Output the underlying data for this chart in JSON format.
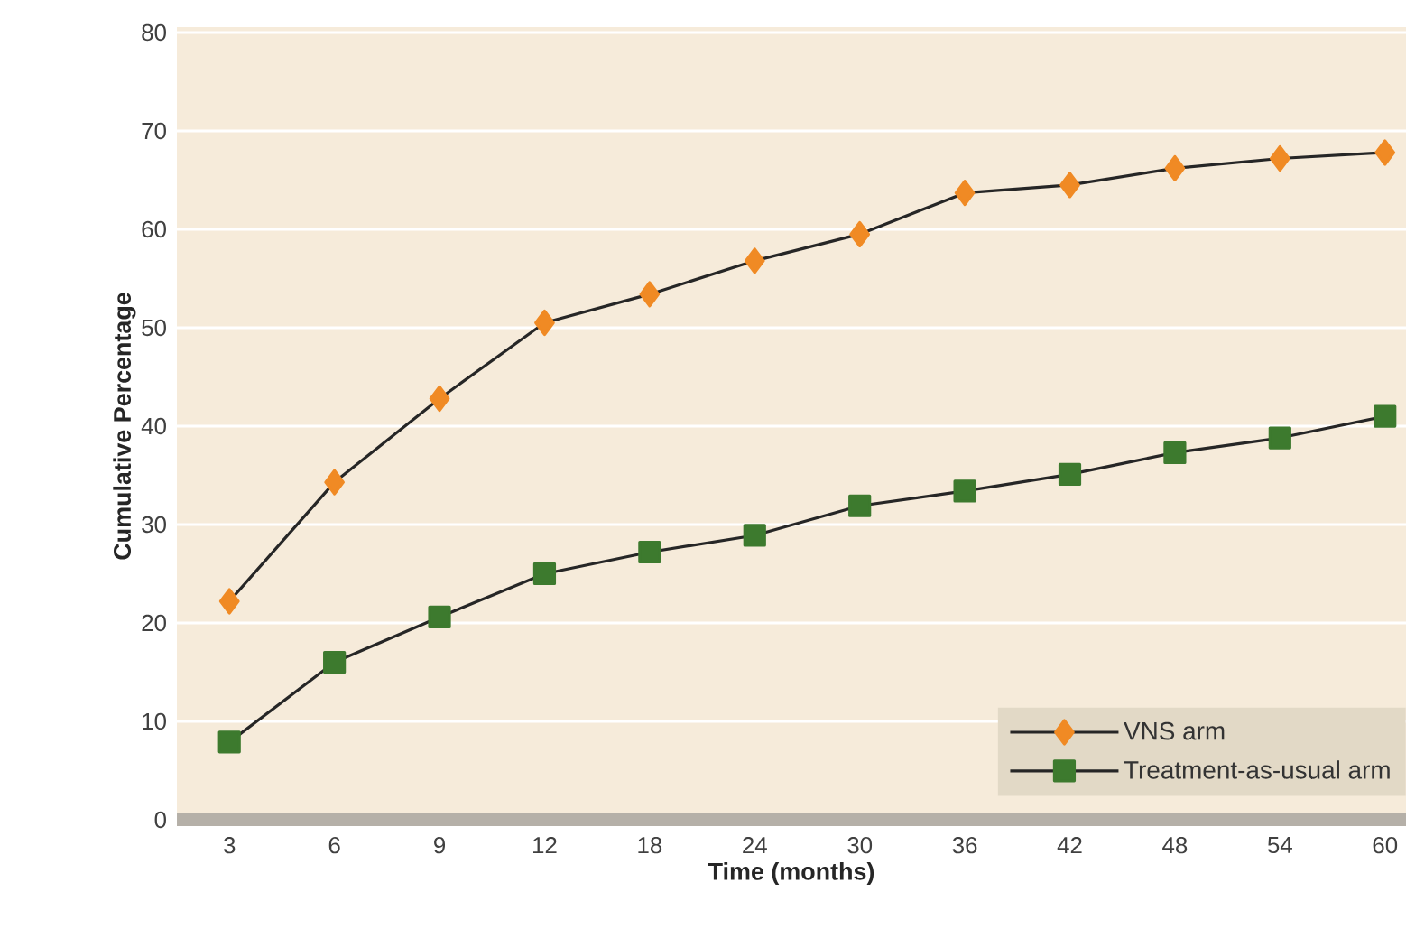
{
  "chart_data": {
    "type": "line",
    "xlabel": "Time (months)",
    "ylabel": "Cumulative Percentage",
    "categories": [
      "3",
      "6",
      "9",
      "12",
      "18",
      "24",
      "30",
      "36",
      "42",
      "48",
      "54",
      "60"
    ],
    "ylim": [
      0,
      80
    ],
    "yticks": [
      0,
      10,
      20,
      30,
      40,
      50,
      60,
      70,
      80
    ],
    "grid": "y",
    "legend": "bottom right",
    "line_style": "solid",
    "series": [
      {
        "name": "VNS arm",
        "color": "#f08a24",
        "marker": "diamond",
        "values": [
          22.2,
          34.3,
          42.8,
          50.5,
          53.4,
          56.8,
          59.5,
          63.7,
          64.5,
          66.2,
          67.2,
          67.8
        ]
      },
      {
        "name": "Treatment-as-usual arm",
        "color": "#3d7a2e",
        "marker": "square",
        "values": [
          7.9,
          16.0,
          20.6,
          25.0,
          27.2,
          28.9,
          31.9,
          33.4,
          35.1,
          37.3,
          38.8,
          41.0
        ]
      }
    ]
  }
}
